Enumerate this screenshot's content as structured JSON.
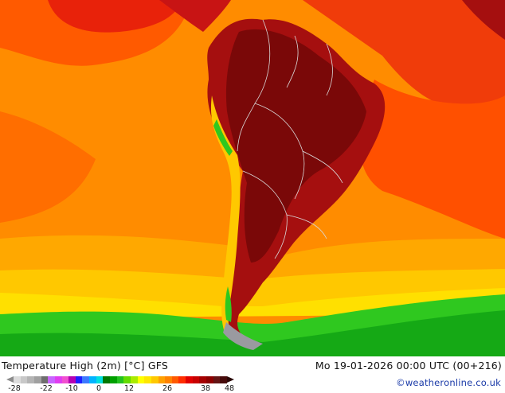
{
  "map": {
    "title": "Temperature High (2m) [°C] GFS",
    "valid_time": "Mo 19-01-2026 00:00 UTC (00+216)",
    "credit": "©weatheronline.co.uk",
    "region": "South America",
    "colors": {
      "background_ocean": "#ff8c00",
      "land_hottest": "#8c0a0a",
      "land_hot": "#c81414",
      "warm_red": "#e82c0c",
      "orange": "#ffa000",
      "yellow": "#ffd200",
      "green": "#23c21f",
      "border_lines": "#d9d9d9"
    }
  },
  "legend": {
    "ticks": [
      "-28",
      "-22",
      "-10",
      "0",
      "12",
      "26",
      "38",
      "48"
    ],
    "colors": [
      "#dcdcdc",
      "#c8c8c8",
      "#b4b4b4",
      "#a0a0a0",
      "#6e6e6e",
      "#c864ff",
      "#e03cf0",
      "#f050d0",
      "#b400b4",
      "#1e1eff",
      "#3c78ff",
      "#00b4ff",
      "#00e0e0",
      "#007800",
      "#00a000",
      "#23c21f",
      "#64dc00",
      "#aaeb00",
      "#ffff00",
      "#ffe600",
      "#ffc800",
      "#ffa000",
      "#ff8200",
      "#ff5a00",
      "#ff2d00",
      "#e10000",
      "#c80000",
      "#a50000",
      "#8c0000",
      "#641414",
      "#460a0a"
    ]
  }
}
